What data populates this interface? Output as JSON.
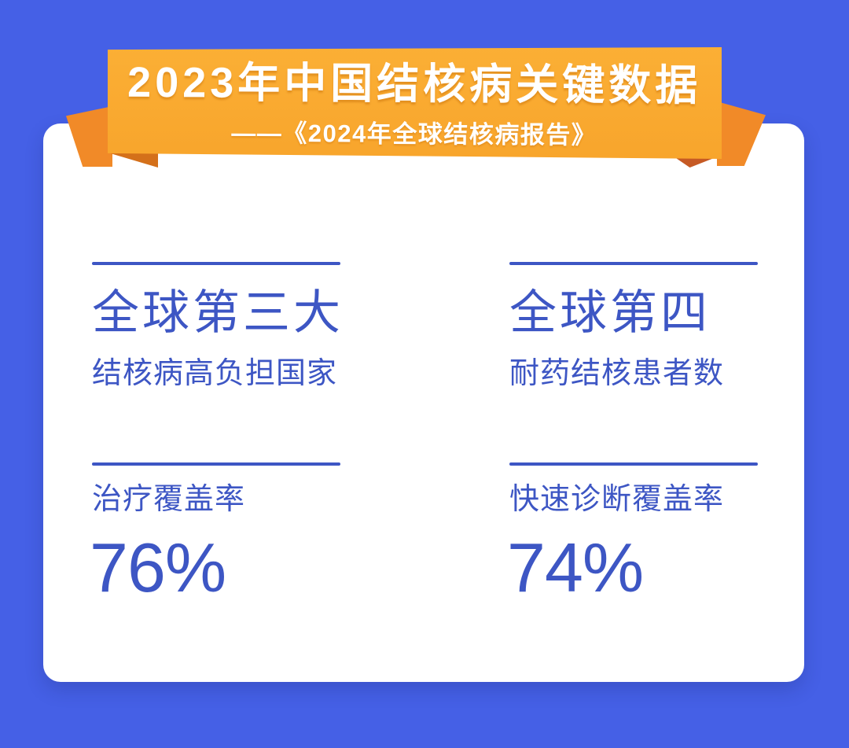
{
  "banner": {
    "title": "2023年中国结核病关键数据",
    "subtitle": "——《2024年全球结核病报告》"
  },
  "columns": [
    {
      "headline": "全球第三大",
      "description": "结核病高负担国家",
      "metric_label": "治疗覆盖率",
      "metric_value": "76%"
    },
    {
      "headline": "全球第四",
      "description": "耐药结核患者数",
      "metric_label": "快速诊断覆盖率",
      "metric_value": "74%"
    }
  ],
  "colors": {
    "bg": "#4560E6",
    "ink": "#3D56C4",
    "banner-orange": "#F8A52C",
    "banner-orange-light": "#FBAF35",
    "ribbon-tail": "#F18A28",
    "fold-left": "#D4701A",
    "fold-right": "#C65A24",
    "card": "#FFFFFF"
  },
  "chart_data": {
    "type": "table",
    "title": "2023年中国结核病关键数据",
    "subtitle": "——《2024年全球结核病报告》",
    "stats": [
      {
        "rank": "全球第三大",
        "category": "结核病高负担国家",
        "metric": "治疗覆盖率",
        "value": 76,
        "unit": "%"
      },
      {
        "rank": "全球第四",
        "category": "耐药结核患者数",
        "metric": "快速诊断覆盖率",
        "value": 74,
        "unit": "%"
      }
    ]
  }
}
